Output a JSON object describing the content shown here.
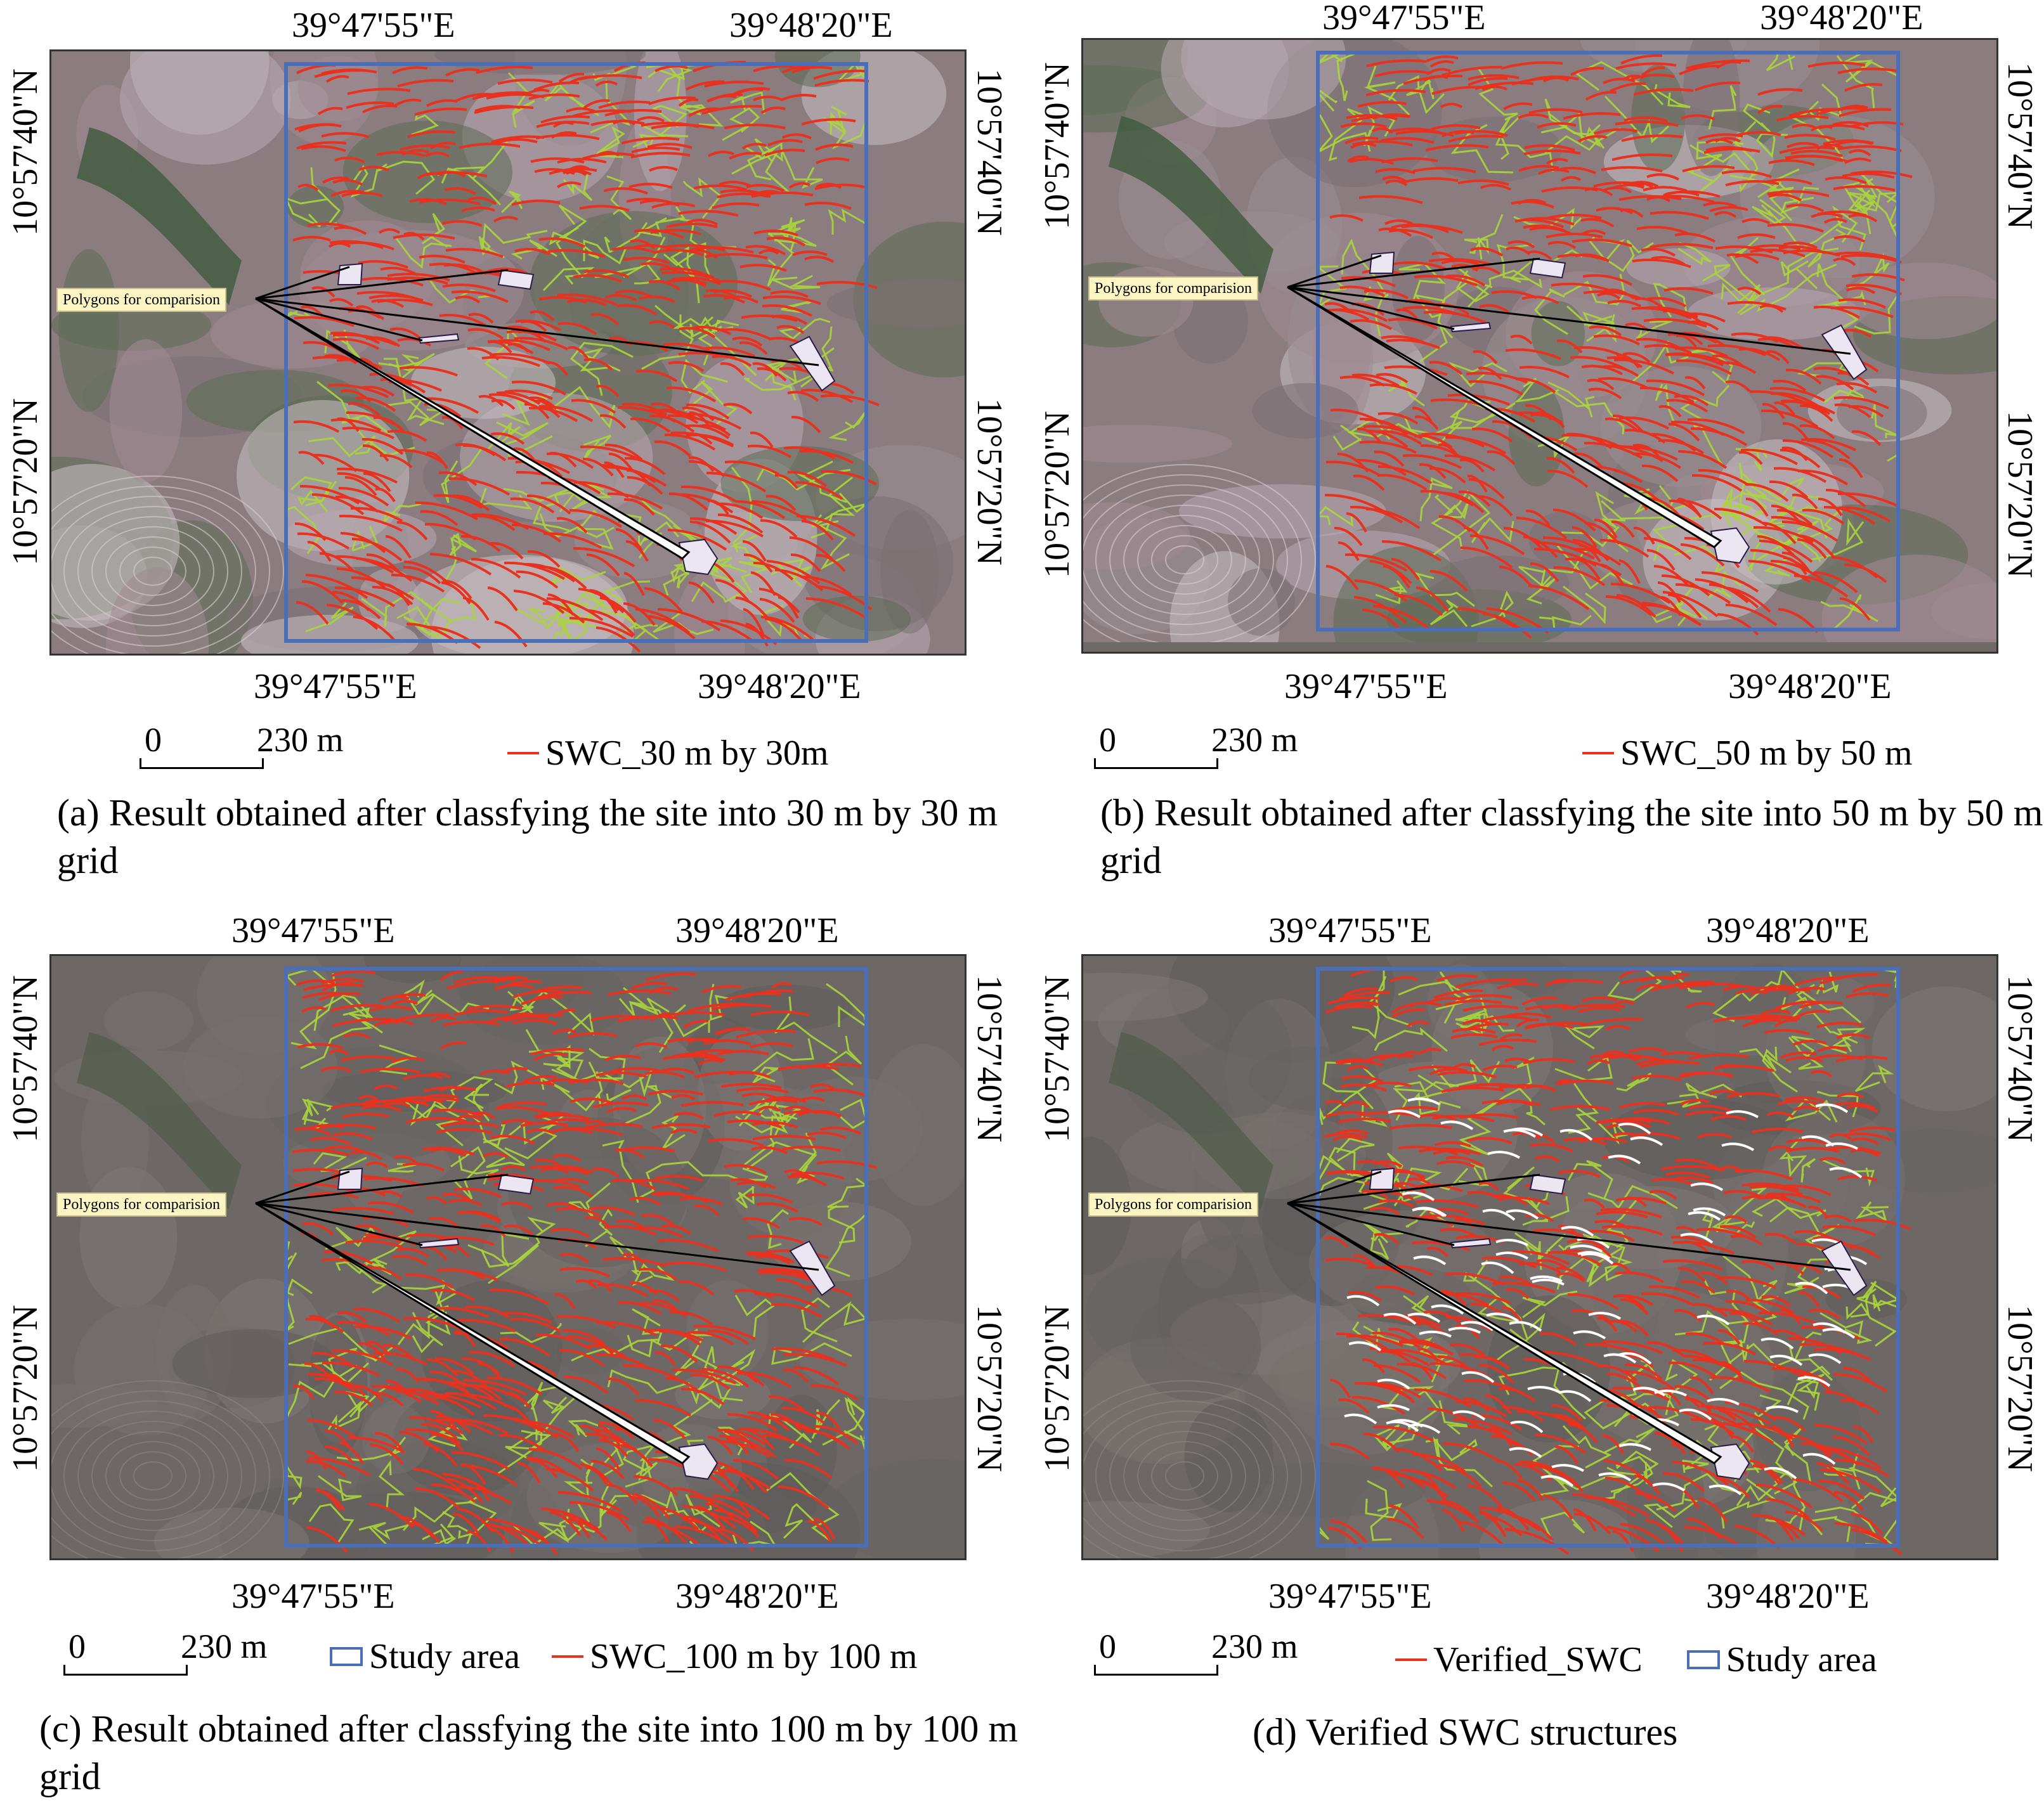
{
  "coords": {
    "lon_left": "39°47'55\"E",
    "lon_right": "39°48'20\"E",
    "lat_top": "10°57'40\"N",
    "lat_bottom": "10°57'20\"N"
  },
  "callout_text": "Polygons for comparision",
  "scale": {
    "zero": "0",
    "distance": "230 m"
  },
  "colors": {
    "swc_line": "#e8311e",
    "boundary": "#a8d63a",
    "study_area": "#4a6eb8",
    "callout_bg": "#fbf5c4"
  },
  "panels": [
    {
      "id": "a",
      "caption": "(a) Result obtained after classfying the site into 30 m by 30 m grid",
      "legend": [
        {
          "icon": "swc-line-icon",
          "label": "SWC_30 m by 30m"
        }
      ]
    },
    {
      "id": "b",
      "caption": "(b) Result obtained after classfying the site into 50 m by 50 m grid",
      "legend": [
        {
          "icon": "swc-line-icon",
          "label": "SWC_50 m by 50 m"
        }
      ]
    },
    {
      "id": "c",
      "caption": "(c) Result obtained after classfying the site into 100 m by 100 m grid",
      "legend": [
        {
          "icon": "study-area-box-icon",
          "label": "Study area"
        },
        {
          "icon": "swc-line-icon",
          "label": "SWC_100 m by 100 m"
        }
      ]
    },
    {
      "id": "d",
      "caption": "(d) Verified SWC structures",
      "legend": [
        {
          "icon": "swc-line-icon",
          "label": "Verified_SWC"
        },
        {
          "icon": "study-area-box-icon",
          "label": "Study area"
        }
      ]
    }
  ]
}
